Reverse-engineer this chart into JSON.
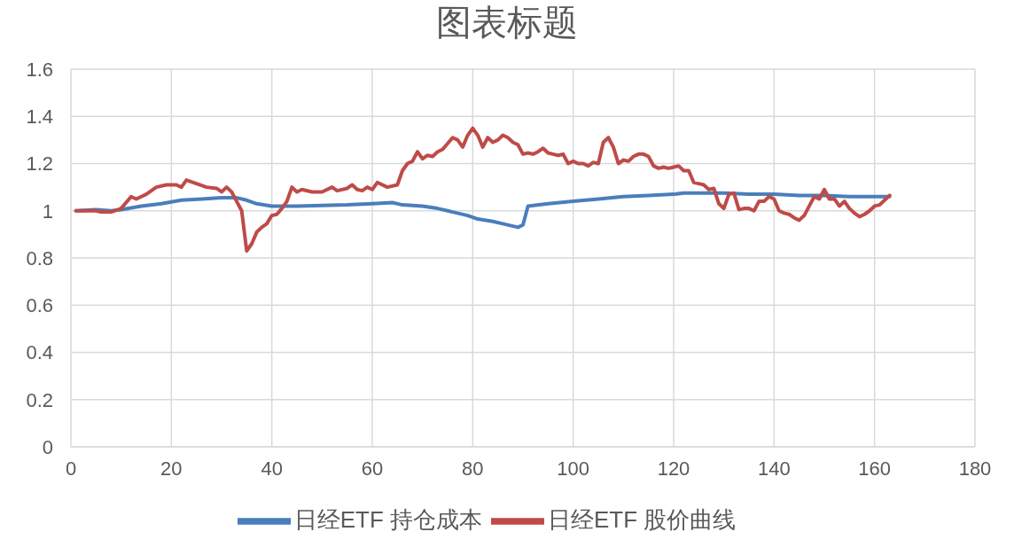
{
  "chart_data": {
    "type": "line",
    "title": "图表标题",
    "xlim": [
      0,
      180
    ],
    "xticks": [
      0,
      20,
      40,
      60,
      80,
      100,
      120,
      140,
      160,
      180
    ],
    "ylim": [
      0,
      1.6
    ],
    "yticks": [
      0,
      0.2,
      0.4,
      0.6,
      0.8,
      1,
      1.2,
      1.4,
      1.6
    ],
    "grid": true,
    "legend": "bottom",
    "marker": "none",
    "line_style": "solid",
    "series": [
      {
        "name": "日经ETF 持仓成本",
        "color": "#4a7ebb",
        "x": [
          1,
          5,
          8,
          10,
          14,
          18,
          22,
          26,
          30,
          33,
          35,
          37,
          40,
          45,
          55,
          60,
          64,
          66,
          70,
          73,
          76,
          79,
          81,
          84,
          86,
          89,
          90,
          91,
          95,
          100,
          105,
          110,
          115,
          120,
          122,
          130,
          135,
          140,
          145,
          150,
          155,
          163
        ],
        "values": [
          1.0,
          1.005,
          1.0,
          1.005,
          1.02,
          1.03,
          1.045,
          1.05,
          1.055,
          1.055,
          1.045,
          1.03,
          1.02,
          1.02,
          1.025,
          1.03,
          1.035,
          1.025,
          1.02,
          1.01,
          0.995,
          0.98,
          0.965,
          0.955,
          0.945,
          0.93,
          0.94,
          1.02,
          1.03,
          1.04,
          1.05,
          1.06,
          1.065,
          1.07,
          1.075,
          1.075,
          1.07,
          1.07,
          1.065,
          1.065,
          1.06,
          1.06
        ]
      },
      {
        "name": "日经ETF 股价曲线",
        "color": "#be4b48",
        "x": [
          1,
          5,
          6,
          8,
          10,
          12,
          13,
          15,
          17,
          19,
          21,
          22,
          23,
          25,
          27,
          29,
          30,
          31,
          32,
          33,
          34,
          35,
          36,
          37,
          38,
          39,
          40,
          41,
          42,
          43,
          44,
          45,
          46,
          48,
          50,
          52,
          53,
          55,
          56,
          57,
          58,
          59,
          60,
          61,
          63,
          65,
          66,
          67,
          68,
          69,
          70,
          71,
          72,
          73,
          74,
          76,
          77,
          78,
          79,
          80,
          81,
          82,
          83,
          84,
          85,
          86,
          87,
          88,
          89,
          90,
          91,
          92,
          93,
          94,
          95,
          96,
          97,
          98,
          99,
          100,
          101,
          102,
          103,
          104,
          105,
          106,
          107,
          108,
          109,
          110,
          111,
          112,
          113,
          114,
          115,
          116,
          117,
          118,
          119,
          120,
          121,
          122,
          123,
          124,
          125,
          126,
          127,
          128,
          129,
          130,
          131,
          132,
          133,
          134,
          135,
          136,
          137,
          138,
          139,
          140,
          141,
          142,
          143,
          144,
          145,
          146,
          147,
          148,
          149,
          150,
          151,
          152,
          153,
          154,
          155,
          156,
          157,
          158,
          159,
          160,
          161,
          162,
          163
        ],
        "values": [
          1.0,
          1.0,
          0.995,
          0.995,
          1.01,
          1.06,
          1.05,
          1.07,
          1.1,
          1.11,
          1.11,
          1.1,
          1.13,
          1.115,
          1.1,
          1.095,
          1.08,
          1.1,
          1.08,
          1.04,
          1.0,
          0.83,
          0.86,
          0.91,
          0.93,
          0.945,
          0.98,
          0.985,
          1.01,
          1.04,
          1.1,
          1.08,
          1.09,
          1.08,
          1.08,
          1.1,
          1.085,
          1.095,
          1.11,
          1.09,
          1.085,
          1.1,
          1.09,
          1.12,
          1.1,
          1.11,
          1.17,
          1.2,
          1.21,
          1.25,
          1.22,
          1.235,
          1.23,
          1.25,
          1.26,
          1.31,
          1.3,
          1.27,
          1.32,
          1.35,
          1.32,
          1.27,
          1.31,
          1.29,
          1.3,
          1.32,
          1.31,
          1.29,
          1.28,
          1.24,
          1.245,
          1.24,
          1.25,
          1.265,
          1.245,
          1.24,
          1.235,
          1.24,
          1.2,
          1.21,
          1.2,
          1.2,
          1.19,
          1.205,
          1.2,
          1.29,
          1.31,
          1.27,
          1.2,
          1.215,
          1.21,
          1.23,
          1.24,
          1.24,
          1.23,
          1.19,
          1.18,
          1.185,
          1.18,
          1.185,
          1.19,
          1.17,
          1.17,
          1.12,
          1.115,
          1.11,
          1.09,
          1.095,
          1.03,
          1.01,
          1.07,
          1.075,
          1.005,
          1.01,
          1.01,
          1.0,
          1.04,
          1.04,
          1.06,
          1.05,
          1.0,
          0.99,
          0.985,
          0.97,
          0.96,
          0.98,
          1.02,
          1.06,
          1.05,
          1.09,
          1.05,
          1.05,
          1.02,
          1.04,
          1.01,
          0.99,
          0.975,
          0.985,
          1.0,
          1.02,
          1.025,
          1.045,
          1.065
        ]
      }
    ]
  }
}
